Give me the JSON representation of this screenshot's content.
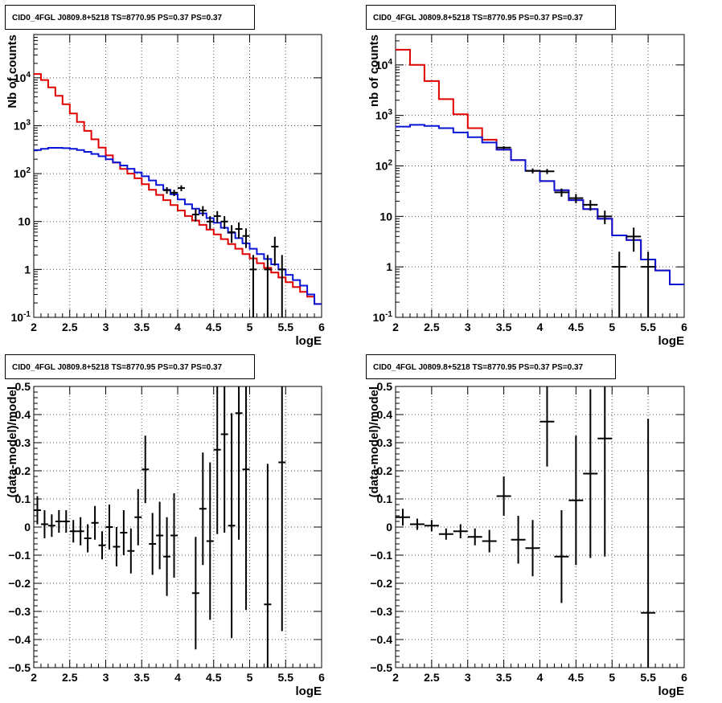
{
  "colors": {
    "total_model": "#e00000",
    "source_model": "#0a14d6",
    "data": "#000000",
    "grid": "#555555"
  },
  "chart_data": [
    {
      "type": "line",
      "title": "CID0_4FGL J0809.8+5218 TS=8770.95 PS=0.37 PS=0.37",
      "xlabel": "logE",
      "ylabel": "Nb of counts",
      "xlim": [
        2,
        6
      ],
      "ylim": [
        0.1,
        80000
      ],
      "yscale": "log",
      "grid": true,
      "xticks": [
        "2",
        "2.5",
        "3",
        "3.5",
        "4",
        "4.5",
        "5",
        "5.5",
        "6"
      ],
      "yticks": [
        {
          "v": 0.1,
          "base": "10",
          "exp": "-1"
        },
        {
          "v": 1,
          "label": "1"
        },
        {
          "v": 10,
          "label": "10"
        },
        {
          "v": 100,
          "base": "10",
          "exp": "2"
        },
        {
          "v": 1000,
          "base": "10",
          "exp": "3"
        },
        {
          "v": 10000,
          "base": "10",
          "exp": "4"
        }
      ],
      "series": [
        {
          "role": "total",
          "kind": "step",
          "step": 0.1,
          "x": [
            2.05,
            2.15,
            2.25,
            2.35,
            2.45,
            2.55,
            2.65,
            2.75,
            2.85,
            2.95,
            3.05,
            3.15,
            3.25,
            3.35,
            3.45,
            3.55,
            3.65,
            3.75,
            3.85,
            3.95,
            4.05,
            4.15,
            4.25,
            4.35,
            4.45,
            4.55,
            4.65,
            4.75,
            4.85,
            4.95,
            5.05,
            5.15,
            5.25,
            5.35,
            5.45,
            5.55,
            5.65,
            5.75,
            5.85,
            5.95
          ],
          "values": [
            12000,
            9000,
            6300,
            4200,
            2800,
            1800,
            1200,
            780,
            520,
            350,
            240,
            170,
            125,
            100,
            80,
            60,
            46,
            36,
            28,
            22,
            17,
            13,
            10.5,
            8.5,
            6.8,
            5.4,
            4.3,
            3.4,
            2.7,
            2.1,
            1.7,
            1.35,
            1.08,
            0.86,
            0.68,
            0.54,
            0.43,
            0.34,
            0.27,
            0.19
          ]
        },
        {
          "role": "source",
          "kind": "step",
          "step": 0.1,
          "x": [
            2.05,
            2.15,
            2.25,
            2.35,
            2.45,
            2.55,
            2.65,
            2.75,
            2.85,
            2.95,
            3.05,
            3.15,
            3.25,
            3.35,
            3.45,
            3.55,
            3.65,
            3.75,
            3.85,
            3.95,
            4.05,
            4.15,
            4.25,
            4.35,
            4.45,
            4.55,
            4.65,
            4.75,
            4.85,
            4.95,
            5.05,
            5.15,
            5.25,
            5.35,
            5.45,
            5.55,
            5.65,
            5.75,
            5.85,
            5.95
          ],
          "values": [
            310,
            330,
            345,
            345,
            340,
            330,
            310,
            285,
            258,
            230,
            200,
            172,
            148,
            126,
            106,
            88,
            72,
            58,
            46,
            37,
            29,
            23,
            18.5,
            14.8,
            11.8,
            9.4,
            7.4,
            5.8,
            4.5,
            3.5,
            2.7,
            2.1,
            1.65,
            1.28,
            1.0,
            0.77,
            0.6,
            0.46,
            0.3,
            0.19
          ]
        },
        {
          "role": "data",
          "kind": "errorbar",
          "xerr": 0.05,
          "x": [
            3.85,
            3.95,
            4.05,
            4.25,
            4.35,
            4.45,
            4.55,
            4.65,
            4.75,
            4.85,
            4.95,
            5.05,
            5.25,
            5.35,
            5.45
          ],
          "values": [
            45,
            40,
            50,
            14,
            17,
            10,
            13,
            10,
            6,
            7,
            5,
            1,
            1,
            3,
            1
          ],
          "yerr_low": [
            7,
            6,
            7,
            4,
            4,
            3,
            3.5,
            3,
            2.4,
            2.6,
            2.2,
            1,
            1,
            1.8,
            1
          ],
          "yerr_high": [
            7,
            6,
            7,
            4,
            4,
            3,
            3.5,
            3,
            2.4,
            2.6,
            2.2,
            1,
            1,
            1.8,
            1
          ]
        }
      ]
    },
    {
      "type": "line",
      "title": "CID0_4FGL J0809.8+5218 TS=8770.95 PS=0.37 PS=0.37",
      "xlabel": "logE",
      "ylabel": "nb of counts",
      "xlim": [
        2,
        6
      ],
      "ylim": [
        0.1,
        40000
      ],
      "yscale": "log",
      "grid": true,
      "xticks": [
        "2",
        "2.5",
        "3",
        "3.5",
        "4",
        "4.5",
        "5",
        "5.5",
        "6"
      ],
      "yticks": [
        {
          "v": 0.1,
          "base": "10",
          "exp": "-1"
        },
        {
          "v": 1,
          "label": "1"
        },
        {
          "v": 10,
          "label": "10"
        },
        {
          "v": 100,
          "base": "10",
          "exp": "2"
        },
        {
          "v": 1000,
          "base": "10",
          "exp": "3"
        },
        {
          "v": 10000,
          "base": "10",
          "exp": "4"
        }
      ],
      "series": [
        {
          "role": "total",
          "kind": "step",
          "step": 0.2,
          "x": [
            2.1,
            2.3,
            2.5,
            2.7,
            2.9,
            3.1,
            3.3,
            3.5,
            3.7,
            3.9,
            4.1,
            4.3,
            4.5,
            4.7,
            4.9,
            5.1,
            5.3,
            5.5,
            5.7,
            5.9
          ],
          "values": [
            20000,
            10000,
            4800,
            2100,
            1050,
            560,
            330,
            210,
            130,
            80,
            50,
            33,
            21,
            14,
            9,
            4.2,
            3.4,
            1.4,
            0.85,
            0.45
          ]
        },
        {
          "role": "source",
          "kind": "step",
          "step": 0.2,
          "x": [
            2.1,
            2.3,
            2.5,
            2.7,
            2.9,
            3.1,
            3.3,
            3.5,
            3.7,
            3.9,
            4.1,
            4.3,
            4.5,
            4.7,
            4.9,
            5.1,
            5.3,
            5.5,
            5.7,
            5.9
          ],
          "values": [
            600,
            650,
            620,
            560,
            460,
            370,
            290,
            210,
            130,
            80,
            50,
            33,
            21,
            14,
            9,
            4.2,
            3.4,
            1.4,
            0.85,
            0.45
          ]
        },
        {
          "role": "data",
          "kind": "errorbar",
          "xerr": 0.1,
          "x": [
            3.5,
            3.9,
            4.1,
            4.3,
            4.5,
            4.7,
            4.9,
            5.1,
            5.3,
            5.5
          ],
          "values": [
            230,
            80,
            78,
            30,
            23,
            17,
            10,
            1,
            4,
            1
          ],
          "yerr_low": [
            15,
            9,
            9,
            5.5,
            4.8,
            4,
            3,
            1,
            2,
            1
          ],
          "yerr_high": [
            15,
            9,
            9,
            5.5,
            4.8,
            4,
            3,
            1,
            2,
            1
          ]
        }
      ]
    },
    {
      "type": "scatter",
      "title": "CID0_4FGL J0809.8+5218 TS=8770.95 PS=0.37 PS=0.37",
      "xlabel": "logE",
      "ylabel": "(data-model)/model",
      "xlim": [
        2,
        6
      ],
      "ylim": [
        -0.5,
        0.5
      ],
      "grid": true,
      "xticks": [
        "2",
        "2.5",
        "3",
        "3.5",
        "4",
        "4.5",
        "5",
        "5.5",
        "6"
      ],
      "yticks": [
        {
          "v": -0.5,
          "label": "−0.5"
        },
        {
          "v": -0.4,
          "label": "−0.4"
        },
        {
          "v": -0.3,
          "label": "−0.3"
        },
        {
          "v": -0.2,
          "label": "−0.2"
        },
        {
          "v": -0.1,
          "label": "−0.1"
        },
        {
          "v": 0,
          "label": "0"
        },
        {
          "v": 0.1,
          "label": "0.1"
        },
        {
          "v": 0.2,
          "label": "0.2"
        },
        {
          "v": 0.3,
          "label": "0.3"
        },
        {
          "v": 0.4,
          "label": "0.4"
        },
        {
          "v": 0.5,
          "label": "0.5"
        }
      ],
      "series": [
        {
          "role": "data",
          "kind": "errorbar",
          "xerr": 0.05,
          "x": [
            2.05,
            2.15,
            2.25,
            2.35,
            2.45,
            2.55,
            2.65,
            2.75,
            2.85,
            2.95,
            3.05,
            3.15,
            3.25,
            3.35,
            3.45,
            3.55,
            3.65,
            3.75,
            3.85,
            3.95,
            4.25,
            4.35,
            4.45,
            4.55,
            4.65,
            4.75,
            4.85,
            4.95,
            5.25,
            5.45
          ],
          "values": [
            0.06,
            0.01,
            0.005,
            0.02,
            0.02,
            -0.015,
            -0.015,
            -0.04,
            0.015,
            -0.065,
            0.0,
            -0.07,
            -0.02,
            -0.085,
            0.035,
            0.205,
            -0.06,
            -0.03,
            -0.105,
            -0.03,
            -0.235,
            0.065,
            -0.05,
            0.275,
            0.33,
            0.005,
            0.405,
            0.205,
            -0.275,
            0.23
          ],
          "yerr_low": [
            0.05,
            0.05,
            0.04,
            0.04,
            0.04,
            0.04,
            0.05,
            0.05,
            0.06,
            0.05,
            0.08,
            0.07,
            0.08,
            0.08,
            0.1,
            0.12,
            0.11,
            0.12,
            0.14,
            0.15,
            0.2,
            0.2,
            0.28,
            0.3,
            0.35,
            0.4,
            0.45,
            0.5,
            0.5,
            0.6
          ],
          "yerr_high": [
            0.05,
            0.05,
            0.04,
            0.04,
            0.04,
            0.04,
            0.05,
            0.05,
            0.06,
            0.05,
            0.08,
            0.07,
            0.08,
            0.08,
            0.1,
            0.12,
            0.11,
            0.12,
            0.14,
            0.15,
            0.2,
            0.2,
            0.28,
            0.3,
            0.35,
            0.4,
            0.45,
            0.5,
            0.5,
            0.6
          ]
        }
      ]
    },
    {
      "type": "scatter",
      "title": "CID0_4FGL J0809.8+5218 TS=8770.95 PS=0.37 PS=0.37",
      "xlabel": "logE",
      "ylabel": "(data-model)/model",
      "xlim": [
        2,
        6
      ],
      "ylim": [
        -0.5,
        0.5
      ],
      "grid": true,
      "xticks": [
        "2",
        "2.5",
        "3",
        "3.5",
        "4",
        "4.5",
        "5",
        "5.5",
        "6"
      ],
      "yticks": [
        {
          "v": -0.5,
          "label": "−0.5"
        },
        {
          "v": -0.4,
          "label": "−0.4"
        },
        {
          "v": -0.3,
          "label": "−0.3"
        },
        {
          "v": -0.2,
          "label": "−0.2"
        },
        {
          "v": -0.1,
          "label": "−0.1"
        },
        {
          "v": 0,
          "label": "0"
        },
        {
          "v": 0.1,
          "label": "0.1"
        },
        {
          "v": 0.2,
          "label": "0.2"
        },
        {
          "v": 0.3,
          "label": "0.3"
        },
        {
          "v": 0.4,
          "label": "0.4"
        },
        {
          "v": 0.5,
          "label": "0.5"
        }
      ],
      "series": [
        {
          "role": "data",
          "kind": "errorbar",
          "xerr": 0.1,
          "x": [
            2.1,
            2.3,
            2.5,
            2.7,
            2.9,
            3.1,
            3.3,
            3.5,
            3.7,
            3.9,
            4.1,
            4.3,
            4.5,
            4.7,
            4.9,
            5.5
          ],
          "values": [
            0.035,
            0.01,
            0.005,
            -0.025,
            -0.015,
            -0.035,
            -0.05,
            0.11,
            -0.045,
            -0.075,
            0.375,
            -0.105,
            0.095,
            0.19,
            0.315,
            -0.305
          ],
          "yerr_low": [
            0.03,
            0.02,
            0.02,
            0.02,
            0.025,
            0.03,
            0.04,
            0.07,
            0.085,
            0.1,
            0.16,
            0.165,
            0.23,
            0.3,
            0.42,
            0.69
          ],
          "yerr_high": [
            0.03,
            0.02,
            0.02,
            0.02,
            0.025,
            0.03,
            0.04,
            0.07,
            0.085,
            0.1,
            0.16,
            0.165,
            0.23,
            0.3,
            0.42,
            0.69
          ]
        }
      ]
    }
  ]
}
